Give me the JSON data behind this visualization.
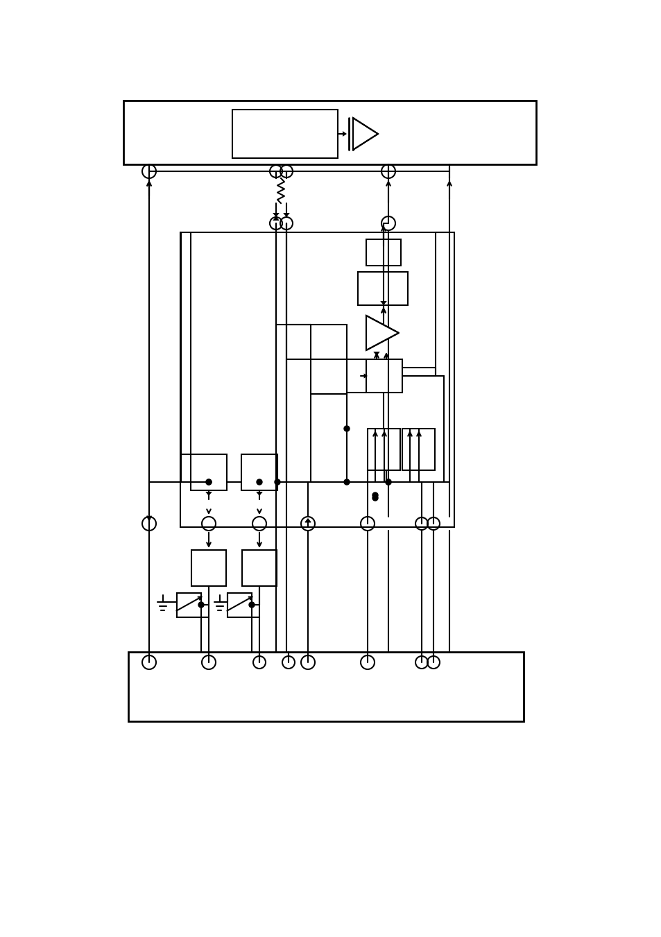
{
  "bg_color": "#ffffff",
  "line_color": "#000000",
  "lw": 1.5,
  "lw_thick": 2.0,
  "fig_w": 9.54,
  "fig_h": 13.51,
  "dpi": 100
}
